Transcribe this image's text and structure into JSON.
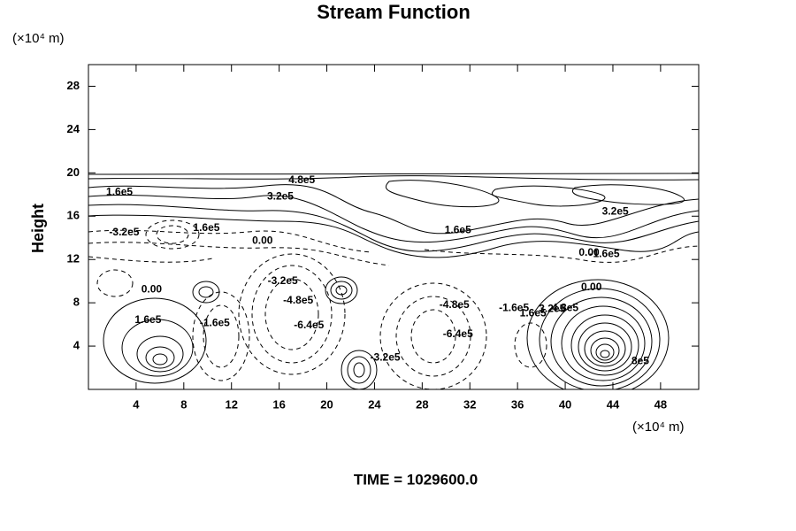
{
  "chart_data": {
    "type": "contour",
    "title": "Stream Function",
    "x_label": "(×10⁴ m)",
    "y_unit_label": "(×10⁴ m)",
    "y_label": "Height",
    "footer": "TIME = 1029600.0",
    "xlim": [
      0,
      51.2
    ],
    "ylim": [
      0,
      30
    ],
    "xticks": [
      4,
      8,
      12,
      16,
      20,
      24,
      28,
      32,
      36,
      40,
      44,
      48
    ],
    "yticks": [
      4,
      8,
      12,
      16,
      20,
      24,
      28
    ],
    "contour_labels": [
      {
        "text": "1.6e5",
        "x": 2.6,
        "y": 18.2
      },
      {
        "text": "4.8e5",
        "x": 17.9,
        "y": 19.3
      },
      {
        "text": "3.2e5",
        "x": 16.1,
        "y": 17.8
      },
      {
        "text": "-3.2e5",
        "x": 3.0,
        "y": 14.5
      },
      {
        "text": "1.6e5",
        "x": 9.9,
        "y": 14.9
      },
      {
        "text": "0.00",
        "x": 14.6,
        "y": 13.7
      },
      {
        "text": "1.6e5",
        "x": 31.0,
        "y": 14.7
      },
      {
        "text": "3.2e5",
        "x": 44.2,
        "y": 16.4
      },
      {
        "text": "0.00",
        "x": 42.0,
        "y": 12.6
      },
      {
        "text": "-1.6e5",
        "x": 43.3,
        "y": 12.5
      },
      {
        "text": "0.00",
        "x": 42.2,
        "y": 9.4
      },
      {
        "text": "0.00",
        "x": 5.3,
        "y": 9.2
      },
      {
        "text": "1.6e5",
        "x": 5.0,
        "y": 6.4
      },
      {
        "text": "-1.6e5",
        "x": 10.6,
        "y": 6.1
      },
      {
        "text": "-3.2e5",
        "x": 16.3,
        "y": 10.0
      },
      {
        "text": "-4.8e5",
        "x": 17.6,
        "y": 8.2
      },
      {
        "text": "-6.4e5",
        "x": 18.5,
        "y": 5.9
      },
      {
        "text": "-3.2e5",
        "x": 24.9,
        "y": 2.9
      },
      {
        "text": "-4.8e5",
        "x": 30.7,
        "y": 7.8
      },
      {
        "text": "-6.4e5",
        "x": 31.0,
        "y": 5.1
      },
      {
        "text": "-1.6e5",
        "x": 35.7,
        "y": 7.5
      },
      {
        "text": "1.6e5",
        "x": 37.3,
        "y": 7.0
      },
      {
        "text": "3.2e5",
        "x": 38.9,
        "y": 7.4
      },
      {
        "text": "4.8e5",
        "x": 40.0,
        "y": 7.5
      },
      {
        "text": "8e5",
        "x": 46.3,
        "y": 2.6
      }
    ]
  }
}
